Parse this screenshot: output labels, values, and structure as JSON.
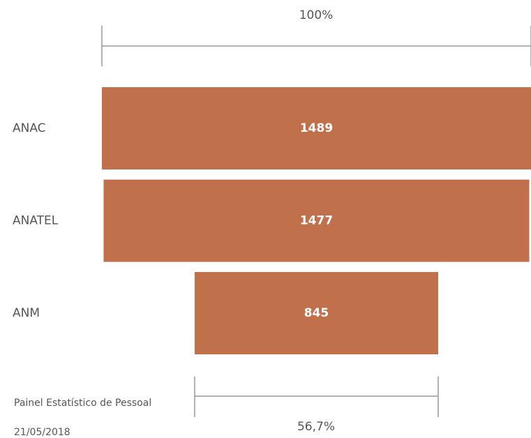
{
  "chart_data": {
    "type": "funnel",
    "categories": [
      "ANAC",
      "ANATEL",
      "ANM"
    ],
    "values": [
      1489,
      1477,
      845
    ],
    "color": "#c0704b",
    "first_percent_label": "100%",
    "last_percent_label": "56,7%"
  },
  "footer": {
    "source": "Painel Estatístico de Pessoal",
    "date": "21/05/2018"
  }
}
